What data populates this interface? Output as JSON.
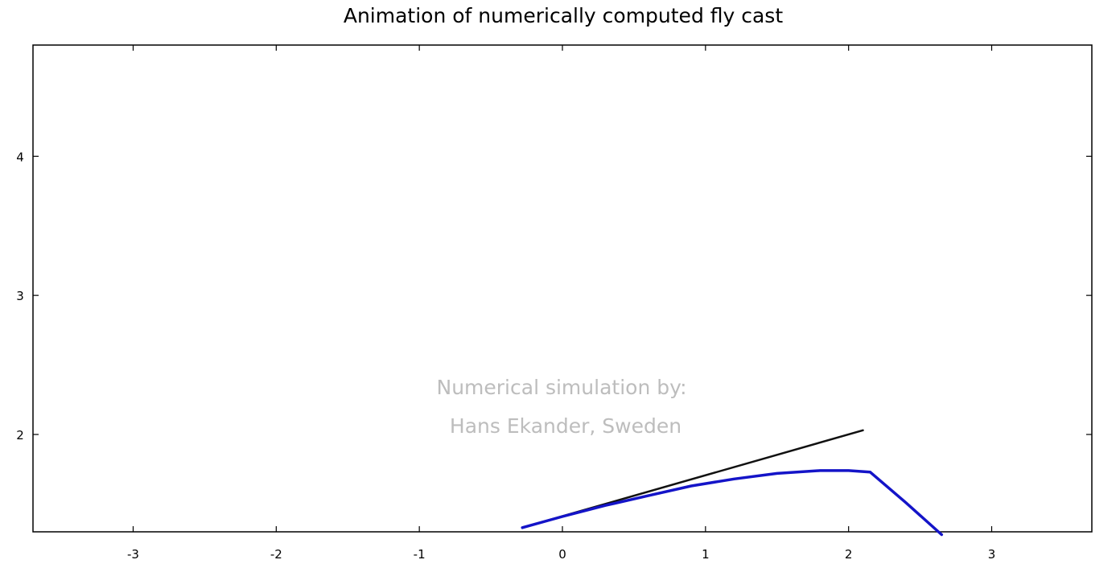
{
  "chart_data": {
    "type": "line",
    "title": "Animation of numerically computed fly cast",
    "xlabel": "",
    "ylabel": "",
    "xlim": [
      -3.7,
      3.7
    ],
    "ylim": [
      1.3,
      4.8
    ],
    "x_ticks": [
      "-3",
      "-2",
      "-1",
      "0",
      "1",
      "2",
      "3"
    ],
    "y_ticks": [
      "2",
      "3",
      "4"
    ],
    "grid": false,
    "series": [
      {
        "color": "#111111",
        "x": [
          -0.28,
          2.1
        ],
        "y": [
          1.33,
          2.03
        ]
      },
      {
        "color": "#1414c8",
        "x": [
          -0.28,
          0.0,
          0.3,
          0.6,
          0.9,
          1.2,
          1.5,
          1.8,
          2.0,
          2.15,
          2.4,
          2.65
        ],
        "y": [
          1.33,
          1.41,
          1.49,
          1.56,
          1.63,
          1.68,
          1.72,
          1.74,
          1.74,
          1.73,
          1.51,
          1.28
        ]
      }
    ],
    "annotations": [
      "Numerical simulation by:",
      "Hans Ekander, Sweden"
    ]
  }
}
